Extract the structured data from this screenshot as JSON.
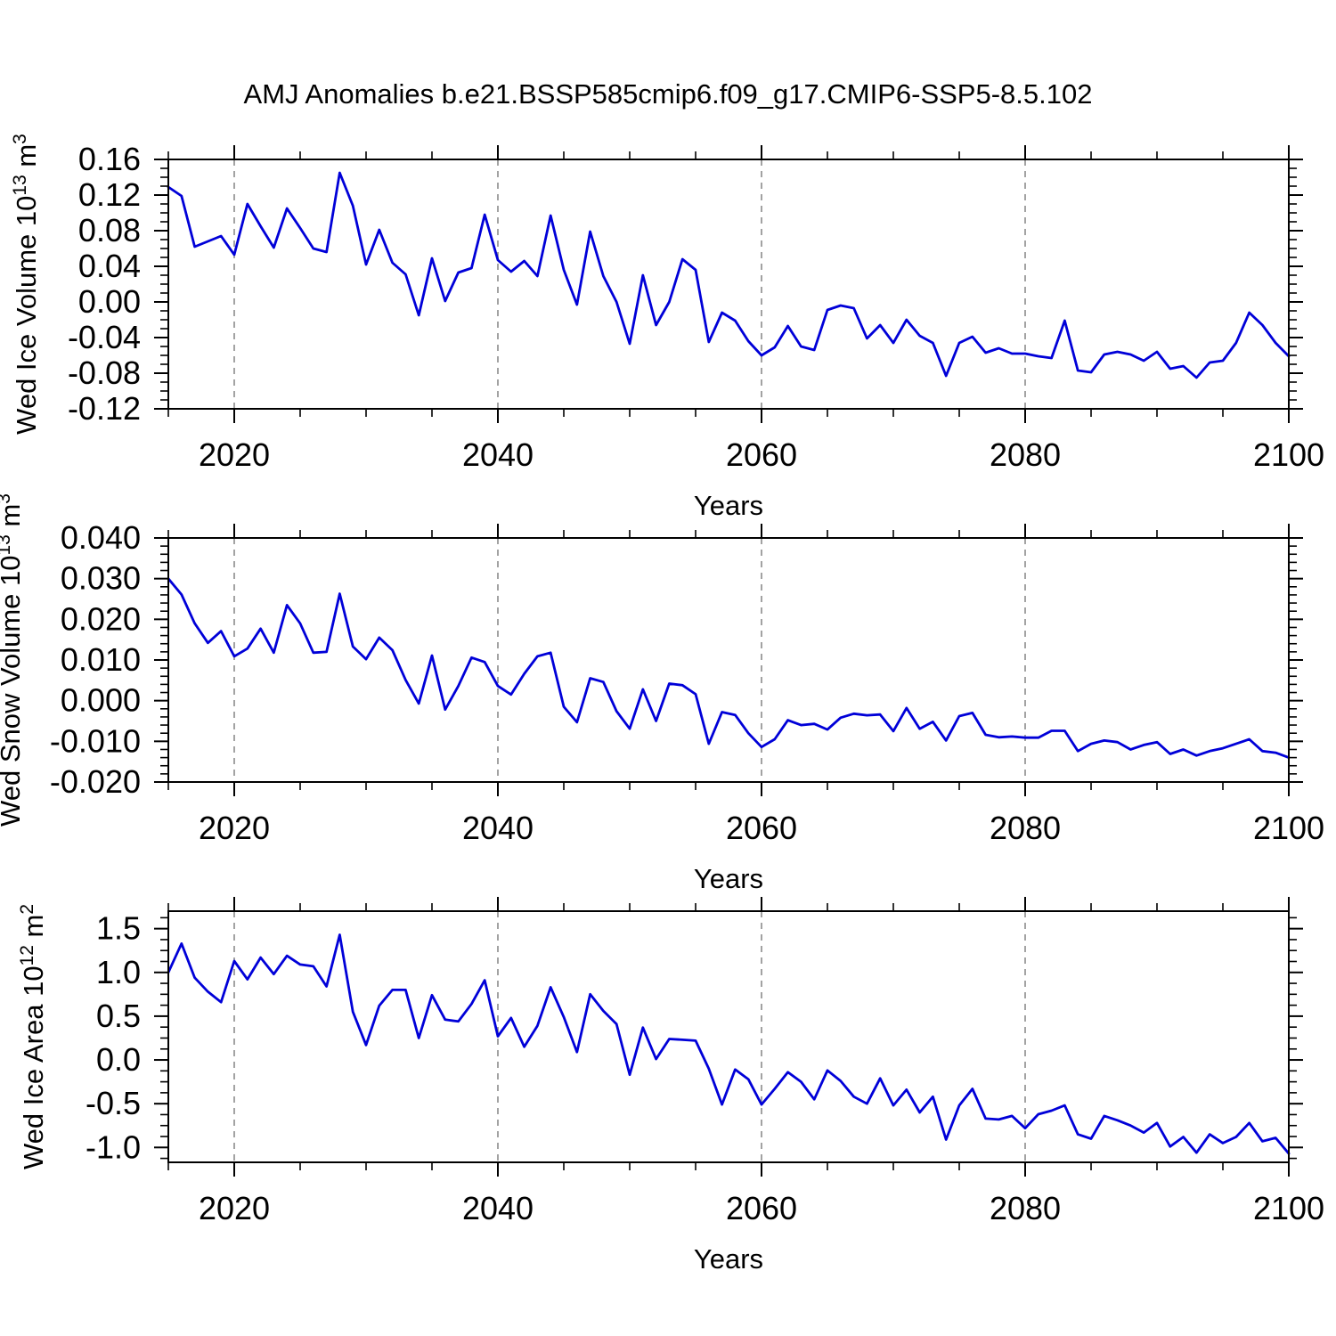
{
  "figure": {
    "title": "AMJ Anomalies b.e21.BSSP585cmip6.f09_g17.CMIP6-SSP5-8.5.102"
  },
  "colors": {
    "line": "#0000D8",
    "grid": "#8c8c8c",
    "frame": "#000000",
    "background": "#ffffff"
  },
  "chart_data": [
    {
      "type": "line",
      "name": "wed-ice-volume",
      "ylabel": "Wed Ice Volume 10^13 m^3",
      "ylabel_parts": [
        {
          "t": "Wed Ice Volume 10"
        },
        {
          "sup": "13"
        },
        {
          "t": " m"
        },
        {
          "sup": "3"
        }
      ],
      "xlabel": "Years",
      "x_range": [
        2015,
        2100
      ],
      "x_step": 1,
      "ylim": [
        -0.12,
        0.16
      ],
      "ytick_values": [
        0.16,
        0.12,
        0.08,
        0.04,
        0.0,
        -0.04,
        -0.08,
        -0.12
      ],
      "ytick_labels": [
        "0.16",
        "0.12",
        "0.08",
        "0.04",
        "0.00",
        "-0.04",
        "-0.08",
        "-0.12"
      ],
      "ytick_minor_step": 0.01,
      "xtick_values": [
        2020,
        2040,
        2060,
        2080,
        2100
      ],
      "xtick_labels": [
        "2020",
        "2040",
        "2060",
        "2080",
        "2100"
      ],
      "xtick_minor_step": 5,
      "grid_x": [
        2020,
        2040,
        2060,
        2080
      ],
      "grid_on": true,
      "legend": "none",
      "series": [
        {
          "name": "Wed Ice Volume anomaly",
          "values": [
            0.129,
            0.119,
            0.062,
            0.068,
            0.074,
            0.053,
            0.11,
            0.085,
            0.061,
            0.105,
            0.083,
            0.06,
            0.056,
            0.145,
            0.108,
            0.042,
            0.081,
            0.044,
            0.031,
            -0.015,
            0.049,
            0.001,
            0.033,
            0.038,
            0.098,
            0.047,
            0.034,
            0.046,
            0.029,
            0.097,
            0.036,
            -0.003,
            0.079,
            0.029,
            0.0,
            -0.047,
            0.03,
            -0.026,
            0.0,
            0.048,
            0.036,
            -0.045,
            -0.012,
            -0.021,
            -0.044,
            -0.06,
            -0.051,
            -0.027,
            -0.05,
            -0.054,
            -0.009,
            -0.004,
            -0.007,
            -0.041,
            -0.026,
            -0.046,
            -0.02,
            -0.038,
            -0.046,
            -0.083,
            -0.046,
            -0.039,
            -0.057,
            -0.052,
            -0.058,
            -0.058,
            -0.061,
            -0.063,
            -0.021,
            -0.077,
            -0.079,
            -0.059,
            -0.056,
            -0.059,
            -0.066,
            -0.056,
            -0.075,
            -0.072,
            -0.085,
            -0.068,
            -0.066,
            -0.046,
            -0.012,
            -0.026,
            -0.046,
            -0.061
          ]
        }
      ]
    },
    {
      "type": "line",
      "name": "wed-snow-volume",
      "ylabel": "Wed Snow Volume 10^13 m^3",
      "ylabel_parts": [
        {
          "t": "Wed Snow Volume 10"
        },
        {
          "sup": "13"
        },
        {
          "t": " m"
        },
        {
          "sup": "3"
        }
      ],
      "xlabel": "Years",
      "x_range": [
        2015,
        2100
      ],
      "x_step": 1,
      "ylim": [
        -0.02,
        0.04
      ],
      "ytick_values": [
        0.04,
        0.03,
        0.02,
        0.01,
        0.0,
        -0.01,
        -0.02
      ],
      "ytick_labels": [
        "0.040",
        "0.030",
        "0.020",
        "0.010",
        "0.000",
        "-0.010",
        "-0.020"
      ],
      "ytick_minor_step": 0.002,
      "xtick_values": [
        2020,
        2040,
        2060,
        2080,
        2100
      ],
      "xtick_labels": [
        "2020",
        "2040",
        "2060",
        "2080",
        "2100"
      ],
      "xtick_minor_step": 5,
      "grid_x": [
        2020,
        2040,
        2060,
        2080
      ],
      "grid_on": true,
      "legend": "none",
      "series": [
        {
          "name": "Wed Snow Volume anomaly",
          "values": [
            0.03,
            0.0261,
            0.019,
            0.0142,
            0.0171,
            0.0109,
            0.0128,
            0.0177,
            0.0118,
            0.0235,
            0.019,
            0.0118,
            0.012,
            0.0263,
            0.0133,
            0.0102,
            0.0155,
            0.0124,
            0.0051,
            -0.0007,
            0.0111,
            -0.0022,
            0.0036,
            0.0106,
            0.0095,
            0.0036,
            0.0015,
            0.0066,
            0.0109,
            0.0118,
            -0.0015,
            -0.0053,
            0.0055,
            0.0046,
            -0.0026,
            -0.0069,
            0.0028,
            -0.005,
            0.0042,
            0.0038,
            0.0016,
            -0.0106,
            -0.0028,
            -0.0035,
            -0.008,
            -0.0114,
            -0.0095,
            -0.0048,
            -0.006,
            -0.0057,
            -0.0071,
            -0.0042,
            -0.0032,
            -0.0036,
            -0.0034,
            -0.0075,
            -0.0018,
            -0.0069,
            -0.0052,
            -0.0098,
            -0.0038,
            -0.003,
            -0.0084,
            -0.009,
            -0.0088,
            -0.0091,
            -0.0091,
            -0.0074,
            -0.0074,
            -0.0124,
            -0.0106,
            -0.0098,
            -0.0102,
            -0.012,
            -0.0109,
            -0.0102,
            -0.0131,
            -0.012,
            -0.0135,
            -0.0124,
            -0.0117,
            -0.0106,
            -0.0095,
            -0.0124,
            -0.0128,
            -0.014
          ]
        }
      ]
    },
    {
      "type": "line",
      "name": "wed-ice-area",
      "ylabel": "Wed Ice Area 10^12 m^2",
      "ylabel_parts": [
        {
          "t": "Wed Ice Area 10"
        },
        {
          "sup": "12"
        },
        {
          "t": " m"
        },
        {
          "sup": "2"
        }
      ],
      "xlabel": "Years",
      "x_range": [
        2015,
        2100
      ],
      "x_step": 1,
      "ylim": [
        -1.17,
        1.7
      ],
      "ytick_values": [
        1.5,
        1.0,
        0.5,
        0.0,
        -0.5,
        -1.0
      ],
      "ytick_labels": [
        "1.5",
        "1.0",
        "0.5",
        "0.0",
        "-0.5",
        "-1.0"
      ],
      "ytick_minor_step": 0.125,
      "xtick_values": [
        2020,
        2040,
        2060,
        2080,
        2100
      ],
      "xtick_labels": [
        "2020",
        "2040",
        "2060",
        "2080",
        "2100"
      ],
      "xtick_minor_step": 5,
      "grid_x": [
        2020,
        2040,
        2060,
        2080
      ],
      "grid_on": true,
      "legend": "none",
      "series": [
        {
          "name": "Wed Ice Area anomaly",
          "values": [
            1.0,
            1.33,
            0.94,
            0.78,
            0.66,
            1.13,
            0.92,
            1.17,
            0.98,
            1.19,
            1.09,
            1.07,
            0.84,
            1.43,
            0.55,
            0.17,
            0.62,
            0.8,
            0.8,
            0.25,
            0.74,
            0.46,
            0.44,
            0.64,
            0.91,
            0.27,
            0.48,
            0.15,
            0.39,
            0.83,
            0.49,
            0.09,
            0.75,
            0.56,
            0.41,
            -0.17,
            0.37,
            0.01,
            0.24,
            0.23,
            0.22,
            -0.1,
            -0.51,
            -0.11,
            -0.22,
            -0.51,
            -0.33,
            -0.14,
            -0.25,
            -0.45,
            -0.12,
            -0.24,
            -0.42,
            -0.5,
            -0.21,
            -0.52,
            -0.34,
            -0.6,
            -0.42,
            -0.91,
            -0.52,
            -0.33,
            -0.67,
            -0.68,
            -0.64,
            -0.78,
            -0.62,
            -0.58,
            -0.52,
            -0.85,
            -0.9,
            -0.64,
            -0.69,
            -0.75,
            -0.83,
            -0.72,
            -0.99,
            -0.88,
            -1.06,
            -0.85,
            -0.95,
            -0.88,
            -0.72,
            -0.93,
            -0.89,
            -1.07
          ]
        }
      ]
    }
  ]
}
